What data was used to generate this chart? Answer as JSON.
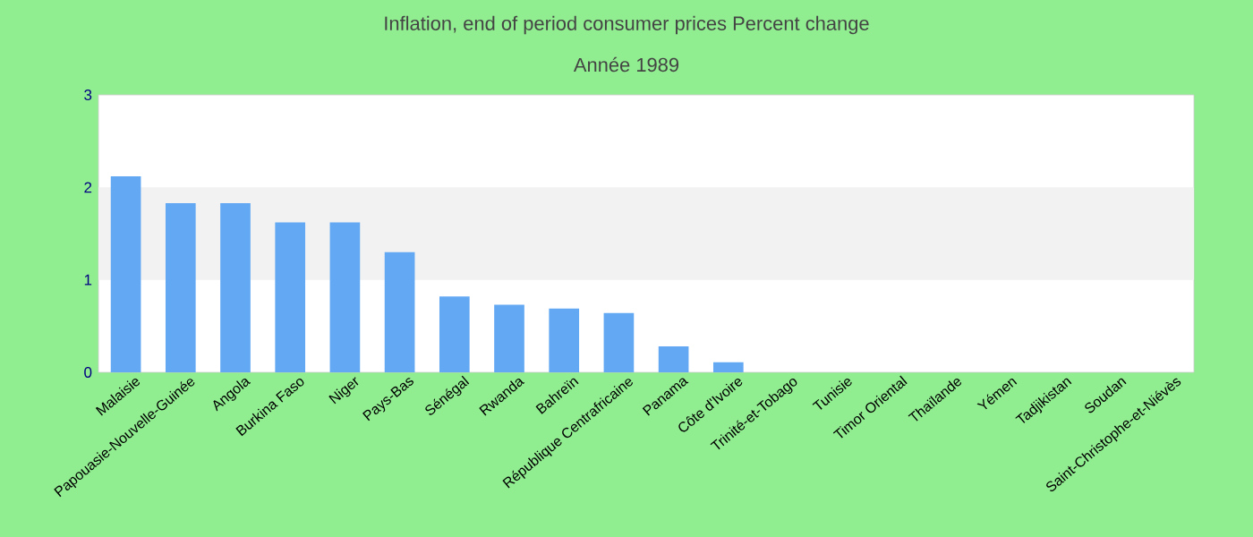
{
  "chart_data": {
    "type": "bar",
    "title": "Inflation, end of period consumer prices  Percent change",
    "subtitle": "Année 1989",
    "categories": [
      "Malaisie",
      "Papouasie-Nouvelle-Guinée",
      "Angola",
      "Burkina Faso",
      "Niger",
      "Pays-Bas",
      "Sénégal",
      "Rwanda",
      "Bahreïn",
      "République Centrafricaine",
      "Panama",
      "Côte d'Ivoire",
      "Trinité-et-Tobago",
      "Tunisie",
      "Timor Oriental",
      "Thaïlande",
      "Yémen",
      "Tadjikistan",
      "Soudan",
      "Saint-Christophe-et-Niévès"
    ],
    "values": [
      2.12,
      1.83,
      1.83,
      1.62,
      1.62,
      1.3,
      0.82,
      0.73,
      0.69,
      0.64,
      0.28,
      0.11,
      0,
      0,
      0,
      0,
      0,
      0,
      0,
      0
    ],
    "color": "#62a8f3",
    "ylim": [
      0,
      3
    ],
    "yticks": [
      0,
      1,
      2,
      3
    ],
    "bands": [
      {
        "axis": "y",
        "from": 1,
        "to": 2,
        "color": "#f2f2f2"
      }
    ]
  }
}
